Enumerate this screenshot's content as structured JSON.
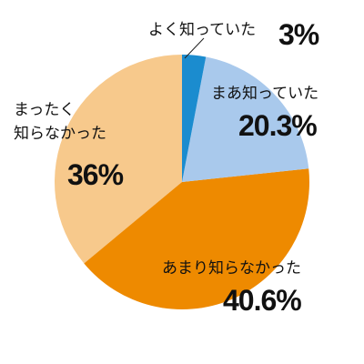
{
  "chart_data": {
    "type": "pie",
    "categories": [
      "よく知っていた",
      "まあ知っていた",
      "あまり知らなかった",
      "まったく\n知らなかった"
    ],
    "values": [
      3,
      20.3,
      40.6,
      36
    ],
    "value_labels": [
      "3%",
      "20.3%",
      "40.6%",
      "36%"
    ],
    "colors": [
      "#1b8ccf",
      "#a9c9ec",
      "#ee8a00",
      "#f7c98c"
    ]
  }
}
